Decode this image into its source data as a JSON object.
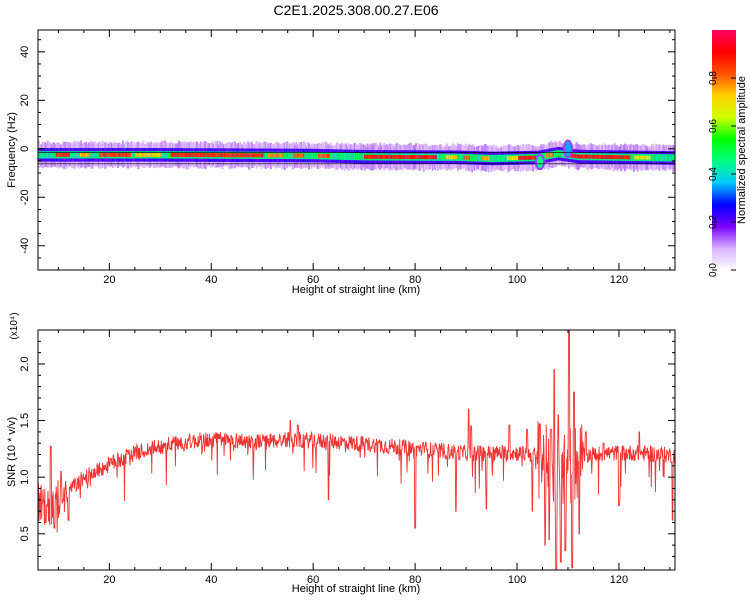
{
  "title": "C2E1.2025.308.00.27.E06",
  "chart_data": [
    {
      "type": "heatmap",
      "xlabel": "Height of straight line (km)",
      "ylabel": "Frequency (Hz)",
      "xlim": [
        6,
        131
      ],
      "ylim": [
        -50,
        49
      ],
      "xticks": [
        20,
        40,
        60,
        80,
        100,
        120
      ],
      "yticks": [
        -40,
        -20,
        0,
        20,
        40
      ],
      "colorbar": {
        "label": "Normalized spectral amplitude",
        "range": [
          0.0,
          1.0
        ],
        "ticks": [
          0.0,
          0.2,
          0.4,
          0.6,
          0.8
        ],
        "tick_labels": [
          "0.0",
          "0.2",
          "0.4",
          "0.6",
          "0.8"
        ],
        "colors": [
          "#ffffff",
          "#d8b0ff",
          "#7a00ff",
          "#0000ff",
          "#00c8ff",
          "#00ff80",
          "#00ff00",
          "#d0ff00",
          "#ffd000",
          "#ff5000",
          "#ff0000",
          "#ff0060"
        ]
      },
      "band": {
        "center": [
          [
            6,
            -2.5
          ],
          [
            30,
            -2.5
          ],
          [
            60,
            -2.8
          ],
          [
            70,
            -3.3
          ],
          [
            88,
            -3.5
          ],
          [
            95,
            -4.0
          ],
          [
            104,
            -3.6
          ],
          [
            108,
            -2.0
          ],
          [
            112,
            -3.2
          ],
          [
            131,
            -3.8
          ]
        ],
        "half_width_core": 1.5,
        "half_width_halo": 4.5,
        "features": [
          {
            "x": 110,
            "y": 3.0,
            "amplitude": 0.35
          },
          {
            "x": 104.5,
            "y": -8.0,
            "amplitude": 0.45
          }
        ],
        "hot_segments": [
          [
            9.5,
            12,
            0.9
          ],
          [
            14,
            16,
            0.78
          ],
          [
            18,
            24,
            0.88
          ],
          [
            25,
            30,
            0.75
          ],
          [
            32,
            50,
            0.9
          ],
          [
            51,
            54,
            0.8
          ],
          [
            56,
            58,
            0.85
          ],
          [
            61,
            63,
            0.85
          ],
          [
            70,
            84,
            0.92
          ],
          [
            86,
            88,
            0.75
          ],
          [
            89.5,
            90.5,
            0.85
          ],
          [
            93,
            94.5,
            0.78
          ],
          [
            98,
            100,
            0.72
          ],
          [
            100,
            103.5,
            0.92
          ],
          [
            105.5,
            107,
            0.82
          ],
          [
            110,
            122,
            0.92
          ],
          [
            123,
            126,
            0.7
          ]
        ]
      }
    },
    {
      "type": "line",
      "xlabel": "Height of straight line (km)",
      "ylabel": "SNR (10 * v/v)",
      "y_multiplier": "(x10⁴)",
      "xlim": [
        6,
        131
      ],
      "ylim": [
        0.18,
        2.3
      ],
      "xticks": [
        20,
        40,
        60,
        80,
        100,
        120
      ],
      "yticks": [
        0.5,
        1.0,
        1.5,
        2.0
      ],
      "ytick_labels": [
        "0.5",
        "1.0",
        "1.5",
        "2.0"
      ],
      "color": "#ee3333",
      "trend": [
        [
          6,
          0.8
        ],
        [
          8,
          0.72
        ],
        [
          10,
          0.82
        ],
        [
          15,
          1.0
        ],
        [
          20,
          1.12
        ],
        [
          25,
          1.22
        ],
        [
          30,
          1.28
        ],
        [
          35,
          1.32
        ],
        [
          40,
          1.34
        ],
        [
          45,
          1.33
        ],
        [
          50,
          1.32
        ],
        [
          55,
          1.34
        ],
        [
          60,
          1.33
        ],
        [
          65,
          1.32
        ],
        [
          70,
          1.3
        ],
        [
          75,
          1.28
        ],
        [
          80,
          1.26
        ],
        [
          85,
          1.24
        ],
        [
          90,
          1.22
        ],
        [
          95,
          1.22
        ],
        [
          100,
          1.22
        ],
        [
          104,
          1.2
        ],
        [
          107,
          1.1
        ],
        [
          110,
          1.12
        ],
        [
          113,
          1.2
        ],
        [
          118,
          1.22
        ],
        [
          124,
          1.22
        ],
        [
          131,
          1.2
        ]
      ],
      "peaks": [
        [
          8.5,
          1.27
        ],
        [
          10.5,
          1.05
        ],
        [
          55.5,
          1.5
        ],
        [
          57,
          1.46
        ],
        [
          90.5,
          1.6
        ],
        [
          91,
          1.45
        ],
        [
          98.5,
          1.46
        ],
        [
          102,
          1.42
        ],
        [
          104.5,
          1.47
        ],
        [
          106.6,
          1.42
        ],
        [
          107.3,
          1.95
        ],
        [
          108.1,
          1.55
        ],
        [
          110.2,
          2.3
        ],
        [
          111.2,
          1.75
        ],
        [
          113.5,
          1.4
        ],
        [
          117,
          1.3
        ],
        [
          124,
          1.4
        ]
      ],
      "dips": [
        [
          7.5,
          0.6
        ],
        [
          9.2,
          0.55
        ],
        [
          12,
          0.62
        ],
        [
          63,
          0.8
        ],
        [
          80,
          0.55
        ],
        [
          88,
          0.7
        ],
        [
          94,
          0.72
        ],
        [
          103,
          0.7
        ],
        [
          105.5,
          0.4
        ],
        [
          106.3,
          0.45
        ],
        [
          107.7,
          0.18
        ],
        [
          108.6,
          0.25
        ],
        [
          109.5,
          0.35
        ],
        [
          110.8,
          0.2
        ],
        [
          112.2,
          0.5
        ],
        [
          120,
          0.75
        ],
        [
          130.5,
          0.62
        ]
      ]
    }
  ]
}
